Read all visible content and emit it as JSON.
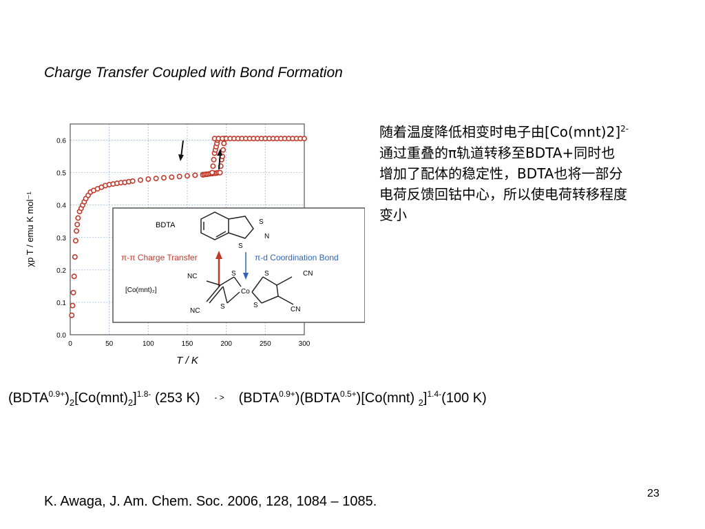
{
  "slide": {
    "title": "Charge Transfer Coupled with Bond Formation",
    "page_number": "23",
    "reference": "K. Awaga, J. Am. Chem. Soc. 2006, 128, 1084 – 1085."
  },
  "description": {
    "lines": [
      {
        "pre": "随着温度降低相变时电子由[Co(mnt)2]",
        "sup": "2-"
      },
      {
        "pre": "通过重叠的π轨道转移至BDTA+同时也",
        "sup": ""
      },
      {
        "pre": "增加了配体的稳定性，BDTA也将一部分",
        "sup": ""
      },
      {
        "pre": "电荷反馈回钴中心，所以使电荷转移程度",
        "sup": ""
      },
      {
        "pre": "变小",
        "sup": ""
      }
    ]
  },
  "equation": {
    "left_1": "(BDTA",
    "left_1_sup": "0.9+",
    "left_2": ")",
    "left_2_sub": "2",
    "left_3": "[Co(mnt)",
    "left_3_sub": "2",
    "left_4": "]",
    "left_4_sup": "1.8-",
    "left_5": " (253 K)",
    "arrow": "-  >",
    "right_1": "(BDTA",
    "right_1_sup": "0.9+",
    "right_2": ")(BDTA",
    "right_2_sup": "0.5+",
    "right_3": ")[Co(mnt) ",
    "right_3_sub": "2",
    "right_4": "]",
    "right_4_sup": "1.4-",
    "right_5": "(100 K)"
  },
  "inset": {
    "bdta_label": "BDTA",
    "co_label": "[Co(mnt)₂]",
    "charge_transfer": "π-π Charge Transfer",
    "coordination": "π-d Coordination Bond",
    "atoms": {
      "s": "S",
      "n": "N",
      "co": "Co",
      "nc": "NC",
      "cn": "CN"
    }
  },
  "chart_data": {
    "type": "scatter",
    "title": "",
    "xlabel": "T / K",
    "ylabel": "χp T / emu K mol⁻¹",
    "xlim": [
      0,
      300
    ],
    "ylim": [
      0,
      0.65
    ],
    "x_ticks": [
      0,
      50,
      100,
      150,
      200,
      250,
      300
    ],
    "y_ticks": [
      "0.0",
      "0.1",
      "0.2",
      "0.3",
      "0.4",
      "0.5",
      "0.6"
    ],
    "grid": true,
    "marker_color": "#c0392b",
    "series": [
      {
        "x": [
          2,
          3,
          4,
          5,
          6,
          7,
          8,
          9,
          10,
          12,
          14,
          16,
          18,
          20,
          23,
          26,
          30,
          35,
          40,
          45,
          50,
          55,
          60,
          65,
          70,
          75,
          80,
          90,
          100,
          110,
          120,
          130,
          140,
          150,
          160,
          170
        ],
        "y": [
          0.06,
          0.09,
          0.13,
          0.18,
          0.24,
          0.29,
          0.32,
          0.34,
          0.36,
          0.38,
          0.39,
          0.4,
          0.41,
          0.42,
          0.43,
          0.44,
          0.445,
          0.45,
          0.455,
          0.46,
          0.463,
          0.465,
          0.467,
          0.469,
          0.47,
          0.472,
          0.474,
          0.477,
          0.48,
          0.482,
          0.484,
          0.486,
          0.488,
          0.49,
          0.492,
          0.494
        ]
      },
      {
        "x": [
          170,
          172,
          174,
          176,
          178,
          180,
          182,
          184,
          186,
          188,
          190
        ],
        "y": [
          0.493,
          0.494,
          0.495,
          0.495,
          0.496,
          0.497,
          0.497,
          0.498,
          0.498,
          0.499,
          0.5
        ]
      },
      {
        "x": [
          182,
          183,
          184,
          185,
          186,
          187,
          188,
          189,
          190
        ],
        "y": [
          0.5,
          0.52,
          0.54,
          0.56,
          0.57,
          0.58,
          0.59,
          0.6,
          0.605
        ]
      },
      {
        "x": [
          192,
          193,
          194,
          195,
          196,
          197,
          198
        ],
        "y": [
          0.5,
          0.52,
          0.54,
          0.55,
          0.57,
          0.59,
          0.605
        ]
      },
      {
        "x": [
          185,
          190,
          195,
          200,
          205,
          210,
          215,
          220,
          225,
          230,
          235,
          240,
          245,
          250,
          255,
          260,
          265,
          270,
          275,
          280,
          285,
          290,
          295,
          300
        ],
        "y": [
          0.605,
          0.605,
          0.605,
          0.605,
          0.605,
          0.605,
          0.605,
          0.605,
          0.605,
          0.605,
          0.605,
          0.605,
          0.605,
          0.605,
          0.605,
          0.605,
          0.605,
          0.605,
          0.605,
          0.605,
          0.605,
          0.605,
          0.605,
          0.605
        ]
      }
    ]
  }
}
